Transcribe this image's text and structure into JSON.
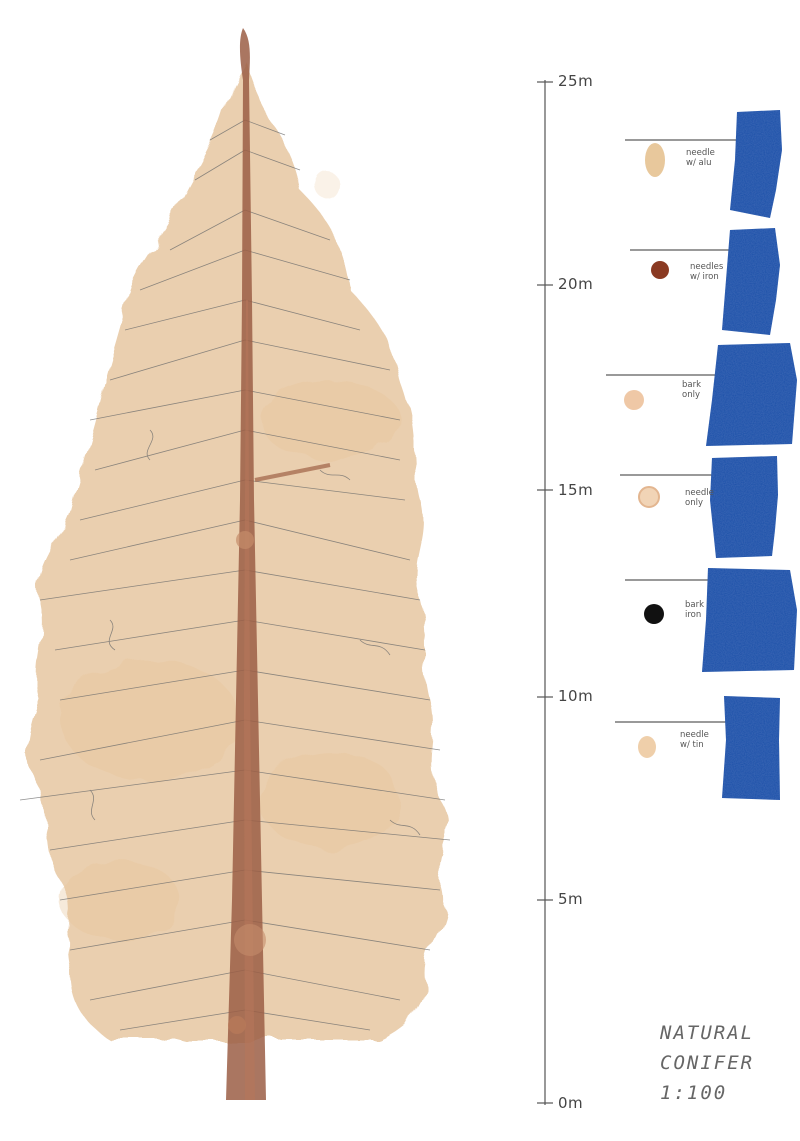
{
  "scale": {
    "ticks": [
      {
        "label": "25m"
      },
      {
        "label": "20m"
      },
      {
        "label": "15m"
      },
      {
        "label": "10m"
      },
      {
        "label": "5m"
      },
      {
        "label": "0m"
      }
    ]
  },
  "swatches": [
    {
      "label_line1": "needle",
      "label_line2": "w/ alu",
      "dot_color": "#e8c89c"
    },
    {
      "label_line1": "needles",
      "label_line2": "w/ iron",
      "dot_color": "#8a3a22"
    },
    {
      "label_line1": "bark",
      "label_line2": "only",
      "dot_color": "#efc8a6"
    },
    {
      "label_line1": "needle",
      "label_line2": "only",
      "dot_color": "#f1d4b6"
    },
    {
      "label_line1": "bark",
      "label_line2": "iron",
      "dot_color": "#111111"
    },
    {
      "label_line1": "needle",
      "label_line2": "w/ tin",
      "dot_color": "#efcfaa"
    }
  ],
  "title": {
    "line1": "NATURAL",
    "line2": "CONIFER",
    "line3": "1:100"
  },
  "colors": {
    "tape": "#1e4fa8",
    "stain": "#d7a66e",
    "trunk": "#9b5e45",
    "pencil": "#555555"
  }
}
